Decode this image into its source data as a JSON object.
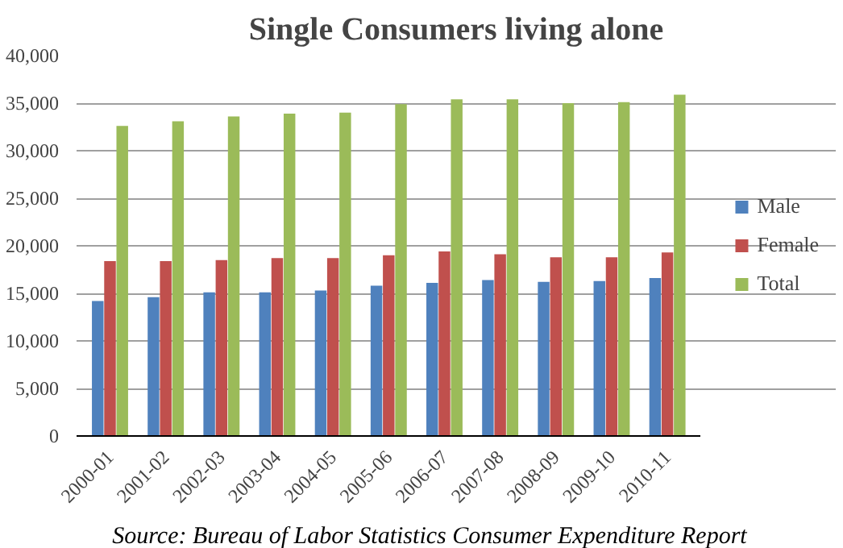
{
  "chart_data": {
    "type": "bar",
    "title": "Single Consumers living alone",
    "categories": [
      "2000-01",
      "2001-02",
      "2002-03",
      "2003-04",
      "2004-05",
      "2005-06",
      "2006-07",
      "2007-08",
      "2008-09",
      "2009-10",
      "2010-11"
    ],
    "series": [
      {
        "name": "Male",
        "color": "#4f81bd",
        "values": [
          14200,
          14600,
          15100,
          15100,
          15300,
          15800,
          16100,
          16400,
          16200,
          16300,
          16600
        ]
      },
      {
        "name": "Female",
        "color": "#c0504d",
        "values": [
          18400,
          18400,
          18500,
          18700,
          18700,
          19000,
          19400,
          19100,
          18800,
          18800,
          19300
        ]
      },
      {
        "name": "Total",
        "color": "#9bbb59",
        "values": [
          32600,
          33100,
          33600,
          33900,
          34000,
          34900,
          35400,
          35400,
          35000,
          35100,
          35900
        ]
      }
    ],
    "ylim": [
      0,
      40000
    ],
    "yticks": [
      {
        "value": 0,
        "label": "0"
      },
      {
        "value": 5000,
        "label": "5,000"
      },
      {
        "value": 10000,
        "label": "10,000"
      },
      {
        "value": 15000,
        "label": "15,000"
      },
      {
        "value": 20000,
        "label": "20,000"
      },
      {
        "value": 25000,
        "label": "25,000"
      },
      {
        "value": 30000,
        "label": "30,000"
      },
      {
        "value": 35000,
        "label": "35,000"
      },
      {
        "value": 40000,
        "label": "40,000"
      }
    ],
    "grid": "y",
    "legend": "right",
    "annotations": [
      "Source: Bureau of Labor Statistics Consumer Expenditure Report"
    ]
  }
}
